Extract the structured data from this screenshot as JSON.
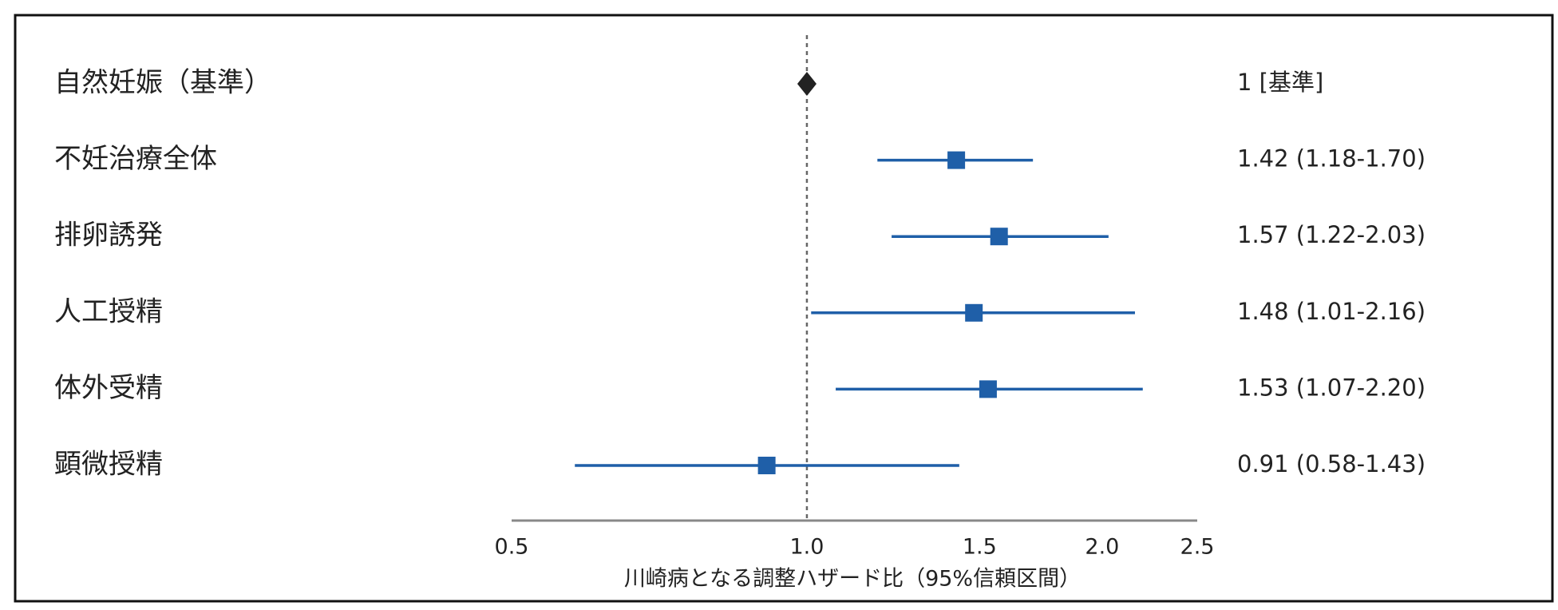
{
  "chart_data": {
    "type": "forest",
    "categories": [
      "自然妊娠（基準）",
      "不妊治療全体",
      "排卵誘発",
      "人工授精",
      "体外受精",
      "顕微授精"
    ],
    "values": [
      1,
      1.42,
      1.57,
      1.48,
      1.53,
      0.91
    ],
    "lower": [
      null,
      1.18,
      1.22,
      1.01,
      1.07,
      0.58
    ],
    "upper": [
      null,
      1.7,
      2.03,
      2.16,
      2.2,
      1.43
    ],
    "value_labels": [
      "1 [基準]",
      "1.42 (1.18-1.70)",
      "1.57 (1.22-2.03)",
      "1.48 (1.01-2.16)",
      "1.53 (1.07-2.20)",
      "0.91 (0.58-1.43)"
    ],
    "color": "#1f5fa8",
    "reference_color": "#222222",
    "reference_line": 1,
    "xlim": [
      0.5,
      2.5
    ],
    "xticks": [
      0.5,
      {
        "value": 1,
        "label": "1.0"
      },
      1.5,
      {
        "value": 2,
        "label": "2.0"
      },
      2.5
    ],
    "xscale": "log",
    "xlabel": "川崎病となる調整ハザード比（95%信頼区間）"
  }
}
